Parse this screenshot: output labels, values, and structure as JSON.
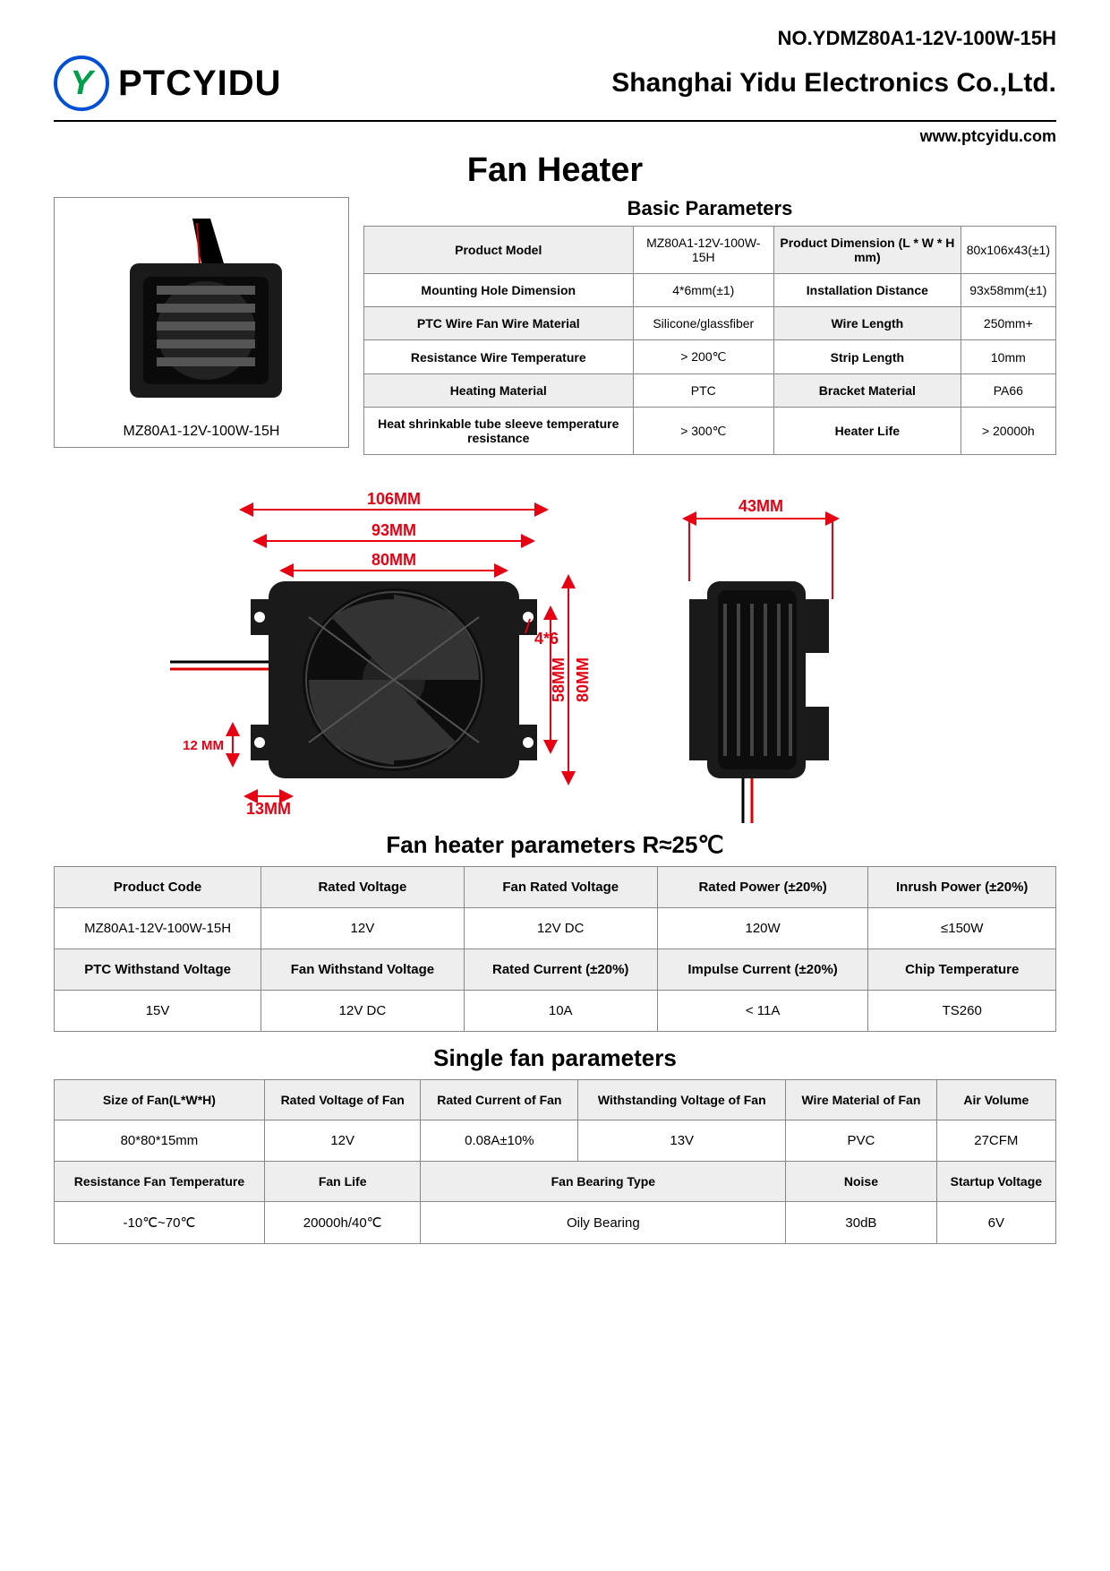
{
  "doc_no": "NO.YDMZ80A1-12V-100W-15H",
  "brand": "PTCYIDU",
  "logo_letter": "Y",
  "company": "Shanghai Yidu Electronics Co.,Ltd.",
  "website": "www.ptcyidu.com",
  "main_title": "Fan Heater",
  "product_caption": "MZ80A1-12V-100W-15H",
  "basic_title": "Basic Parameters",
  "basic_rows": [
    [
      "Product Model",
      "MZ80A1-12V-100W-15H",
      "Product Dimension (L * W * H mm)",
      "80x106x43(±1)"
    ],
    [
      "Mounting Hole Dimension",
      "4*6mm(±1)",
      "Installation Distance",
      "93x58mm(±1)"
    ],
    [
      "PTC Wire Fan Wire Material",
      "Silicone/glassfiber",
      "Wire Length",
      "250mm+"
    ],
    [
      "Resistance Wire Temperature",
      "> 200℃",
      "Strip Length",
      "10mm"
    ],
    [
      "Heating Material",
      "PTC",
      "Bracket Material",
      "PA66"
    ],
    [
      "Heat shrinkable tube sleeve temperature resistance",
      "> 300℃",
      "Heater Life",
      "> 20000h"
    ]
  ],
  "dimensions": {
    "w_outer": "106MM",
    "w_mid": "93MM",
    "w_inner": "80MM",
    "hole": "4*6",
    "h_inner": "58MM",
    "h_outer": "80MM",
    "bottom_h": "12 MM",
    "bottom_w": "13MM",
    "side_w": "43MM",
    "color": "#e60012"
  },
  "fanheater_title": "Fan heater parameters R≈25℃",
  "fanheater": {
    "h1": [
      "Product Code",
      "Rated Voltage",
      "Fan Rated Voltage",
      "Rated Power (±20%)",
      "Inrush Power (±20%)"
    ],
    "v1": [
      "MZ80A1-12V-100W-15H",
      "12V",
      "12V DC",
      "120W",
      "≤150W"
    ],
    "h2": [
      "PTC Withstand Voltage",
      "Fan Withstand Voltage",
      "Rated Current (±20%)",
      "Impulse Current (±20%)",
      "Chip Temperature"
    ],
    "v2": [
      "15V",
      "12V DC",
      "10A",
      "< 11A",
      "TS260"
    ]
  },
  "singlefan_title": "Single fan parameters",
  "singlefan": {
    "h1": [
      "Size of Fan(L*W*H)",
      "Rated Voltage of Fan",
      "Rated Current of Fan",
      "Withstanding Voltage of Fan",
      "Wire Material of Fan",
      "Air Volume"
    ],
    "v1": [
      "80*80*15mm",
      "12V",
      "0.08A±10%",
      "13V",
      "PVC",
      "27CFM"
    ],
    "h2": [
      "Resistance Fan Temperature",
      "Fan Life",
      "Fan Bearing Type",
      "Noise",
      "Startup Voltage"
    ],
    "v2": [
      "-10℃~70℃",
      "20000h/40℃",
      "Oily Bearing",
      "30dB",
      "6V"
    ]
  }
}
